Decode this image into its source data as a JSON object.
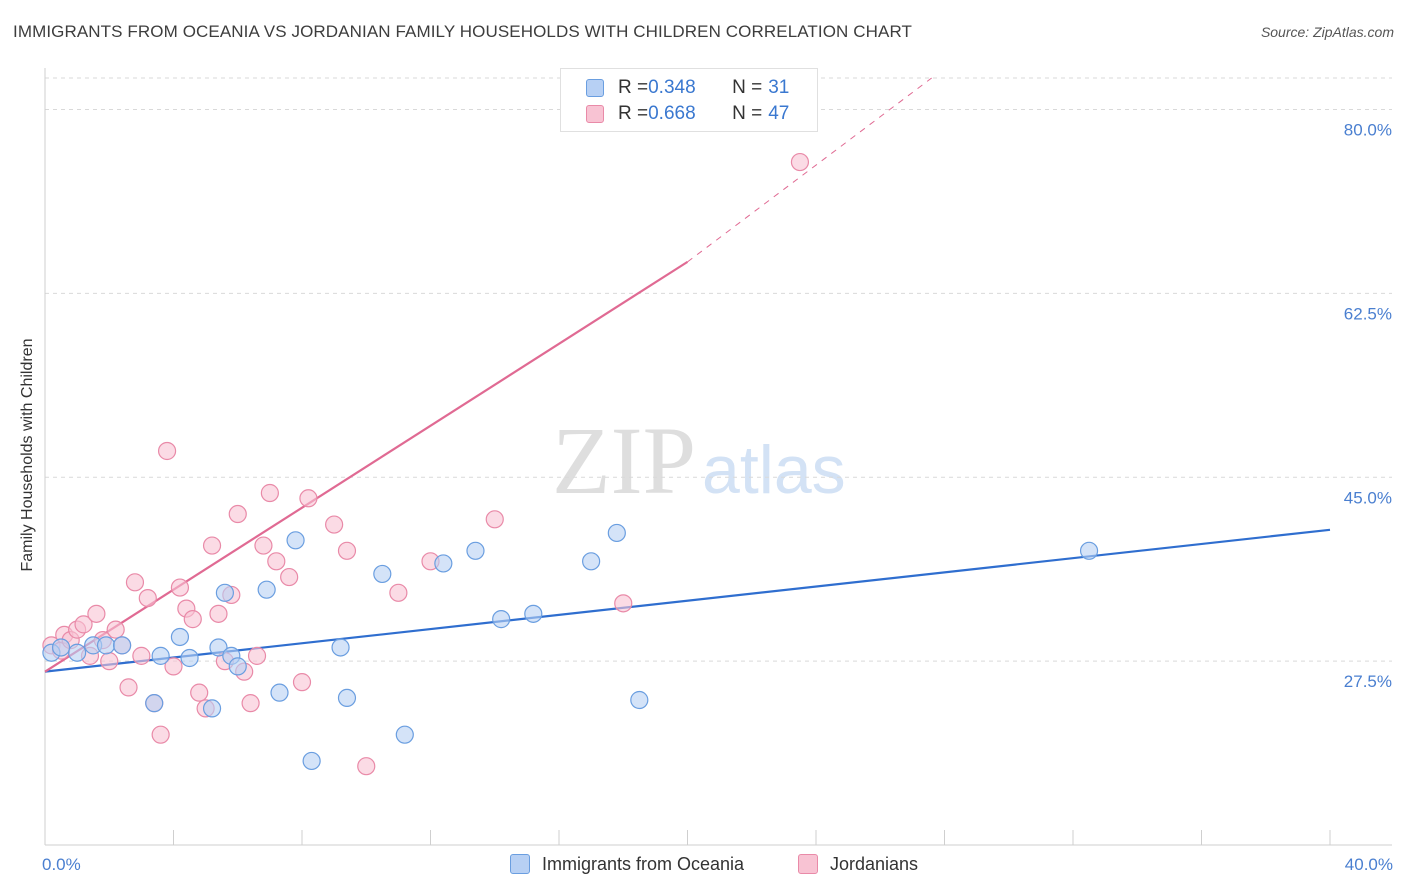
{
  "title": "IMMIGRANTS FROM OCEANIA VS JORDANIAN FAMILY HOUSEHOLDS WITH CHILDREN CORRELATION CHART",
  "source": "Source: ZipAtlas.com",
  "watermark": {
    "zip": "ZIP",
    "atlas": "atlas"
  },
  "legend": {
    "rows": [
      {
        "r_label": "R = ",
        "r_value": "0.348",
        "n_label": "N = ",
        "n_value": "31"
      },
      {
        "r_label": "R = ",
        "r_value": "0.668",
        "n_label": "N = ",
        "n_value": "47"
      }
    ]
  },
  "colors": {
    "blue_fill": "#b7d0f4",
    "blue_stroke": "#6a9ee0",
    "blue_line": "#2f6ecf",
    "pink_fill": "#f8c3d3",
    "pink_stroke": "#e98aa8",
    "pink_line": "#e06a93",
    "grid": "#d9d9d9",
    "tick_text": "#4a7fd0"
  },
  "chart_data": {
    "type": "scatter",
    "title": "IMMIGRANTS FROM OCEANIA VS JORDANIAN FAMILY HOUSEHOLDS WITH CHILDREN CORRELATION CHART",
    "xlabel": "",
    "ylabel": "Family Households with Children",
    "xlim": [
      0,
      40
    ],
    "ylim": [
      10,
      83
    ],
    "x_tick_labels": [
      "0.0%",
      "40.0%"
    ],
    "y_ticks": [
      27.5,
      45.0,
      62.5,
      80.0
    ],
    "y_tick_labels": [
      "27.5%",
      "45.0%",
      "62.5%",
      "80.0%"
    ],
    "grid": true,
    "series": [
      {
        "name": "Immigrants from Oceania",
        "color": "blue",
        "x": [
          0.2,
          0.5,
          1.0,
          1.5,
          1.9,
          2.4,
          3.4,
          3.6,
          4.2,
          4.5,
          5.2,
          5.4,
          5.6,
          5.8,
          6.0,
          6.9,
          7.3,
          7.8,
          8.3,
          9.2,
          9.4,
          10.5,
          11.2,
          12.4,
          13.4,
          14.2,
          15.2,
          17.0,
          17.8,
          18.5,
          32.5
        ],
        "y": [
          28.3,
          28.8,
          28.3,
          29.0,
          29.0,
          29.0,
          23.5,
          28.0,
          29.8,
          27.8,
          23.0,
          28.8,
          34.0,
          28.0,
          27.0,
          34.3,
          24.5,
          39.0,
          18.0,
          28.8,
          24.0,
          35.8,
          20.5,
          36.8,
          38.0,
          31.5,
          32.0,
          37.0,
          39.7,
          23.8,
          38.0
        ]
      },
      {
        "name": "Jordanians",
        "color": "pink",
        "x": [
          0.2,
          0.5,
          0.6,
          0.8,
          1.0,
          1.2,
          1.4,
          1.6,
          1.8,
          2.0,
          2.2,
          2.4,
          2.6,
          2.8,
          3.0,
          3.2,
          3.4,
          3.6,
          3.8,
          4.0,
          4.2,
          4.4,
          4.6,
          4.8,
          5.0,
          5.2,
          5.4,
          5.6,
          5.8,
          6.0,
          6.2,
          6.4,
          6.6,
          6.8,
          7.0,
          7.2,
          7.6,
          8.0,
          8.2,
          9.0,
          9.4,
          10.0,
          11.0,
          12.0,
          14.0,
          18.0,
          23.5
        ],
        "y": [
          29.0,
          28.5,
          30.0,
          29.5,
          30.5,
          31.0,
          28.0,
          32.0,
          29.5,
          27.5,
          30.5,
          29.0,
          25.0,
          35.0,
          28.0,
          33.5,
          23.5,
          20.5,
          47.5,
          27.0,
          34.5,
          32.5,
          31.5,
          24.5,
          23.0,
          38.5,
          32.0,
          27.5,
          33.8,
          41.5,
          26.5,
          23.5,
          28.0,
          38.5,
          43.5,
          37.0,
          35.5,
          25.5,
          43.0,
          40.5,
          38.0,
          17.5,
          34.0,
          37.0,
          41.0,
          33.0,
          75.0
        ]
      }
    ],
    "trend_lines": [
      {
        "series": "Immigrants from Oceania",
        "x": [
          0,
          40
        ],
        "y": [
          26.5,
          40.0
        ],
        "style": "solid"
      },
      {
        "series": "Jordanians",
        "x": [
          0,
          20.0
        ],
        "y": [
          26.5,
          65.5
        ],
        "style": "solid"
      },
      {
        "series": "Jordanians",
        "x": [
          20.0,
          27.6
        ],
        "y": [
          65.5,
          83.0
        ],
        "style": "dashed"
      }
    ]
  }
}
